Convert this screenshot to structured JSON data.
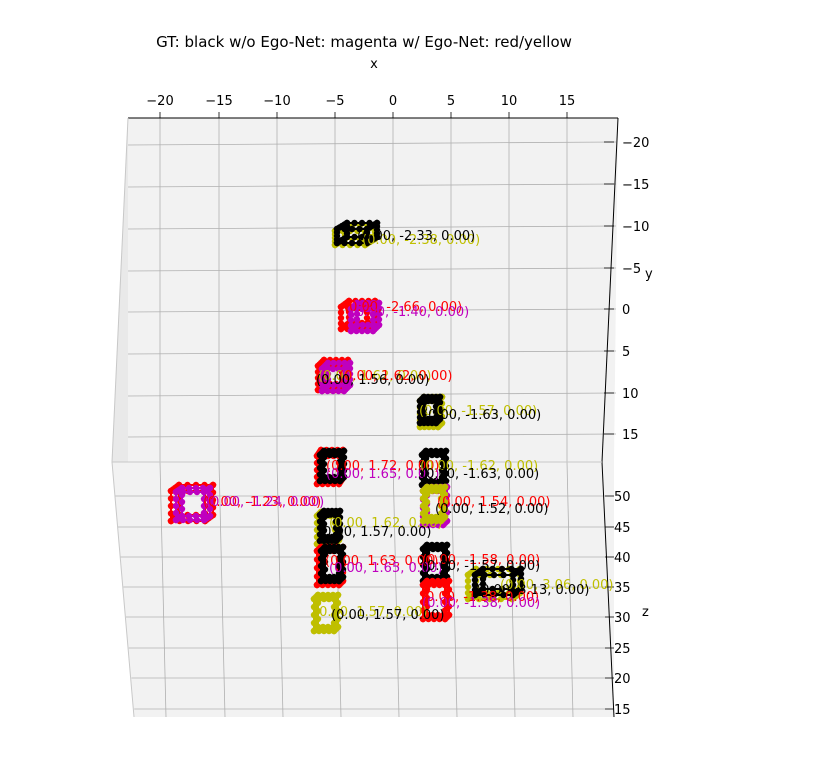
{
  "chart_data": {
    "type": "scatter",
    "title": "GT: black w/o Ego-Net: magenta w/ Ego-Net: red/yellow",
    "xlabel": "x",
    "ylabel": "y",
    "zlabel": "z",
    "x_ticks": [
      "−20",
      "−15",
      "−10",
      "−5",
      "0",
      "5",
      "10",
      "15"
    ],
    "y_ticks": [
      "−20",
      "−15",
      "−10",
      "−5",
      "0",
      "5",
      "10",
      "15"
    ],
    "z_ticks": [
      "50",
      "45",
      "40",
      "35",
      "30",
      "25",
      "20",
      "15"
    ],
    "colors": {
      "gt": "#000000",
      "wo_egonet": "#bf00bf",
      "w_egonet_red": "#ff0000",
      "w_egonet_yellow": "#bfbf00"
    },
    "annotations": [
      {
        "color": "yellow",
        "text": "(0.00, -2.38, 0.00)"
      },
      {
        "color": "black",
        "text": "(0.00, -2.33, 0.00)"
      },
      {
        "color": "red",
        "text": "(0.00, -2.66, 0.00)"
      },
      {
        "color": "magenta",
        "text": "(0.00, -1.40, 0.00)"
      },
      {
        "color": "yellow",
        "text": "(0.00, 1.62, 0.00)"
      },
      {
        "color": "red",
        "text": "(0.00, 1.62, 0.00)"
      },
      {
        "color": "black",
        "text": "(0.00, 1.56, 0.00)"
      },
      {
        "color": "yellow",
        "text": "(0.00, -1.57, 0.00)"
      },
      {
        "color": "black",
        "text": "(0.00, -1.63, 0.00)"
      },
      {
        "color": "red",
        "text": "(0.00, 1.72, 0.00)"
      },
      {
        "color": "magenta",
        "text": "(0.00, 1.65, 0.00)"
      },
      {
        "color": "yellow",
        "text": "(0.00, -1.62, 0.00)"
      },
      {
        "color": "black",
        "text": "(0.00, -1.63, 0.00)"
      },
      {
        "color": "red",
        "text": "(0.00, -1.23, 0.00)"
      },
      {
        "color": "magenta",
        "text": "(0.00, -1.24, 0.00)"
      },
      {
        "color": "red",
        "text": "(0.00, 1.54, 0.00)"
      },
      {
        "color": "black",
        "text": "(0.00, 1.52, 0.00)"
      },
      {
        "color": "yellow",
        "text": "(0.00, 1.62, 0.00)"
      },
      {
        "color": "black",
        "text": "(0.00, 1.57, 0.00)"
      },
      {
        "color": "red",
        "text": "(0.00, 1.63, 0.00)"
      },
      {
        "color": "magenta",
        "text": "(0.00, 1.65, 0.00)"
      },
      {
        "color": "red",
        "text": "(0.00, -1.58, 0.00)"
      },
      {
        "color": "black",
        "text": "(0.00, -1.57, 0.00)"
      },
      {
        "color": "yellow",
        "text": "(0.00, 3.06, 0.00)"
      },
      {
        "color": "black",
        "text": "(0.00, 3.13, 0.00)"
      },
      {
        "color": "red",
        "text": "(0.00, -1.38, 0.00)"
      },
      {
        "color": "magenta",
        "text": "(0.00, -1.38, 0.00)"
      },
      {
        "color": "yellow",
        "text": "(0.00, 1.57, 0.00)"
      },
      {
        "color": "black",
        "text": "(0.00, 1.57, 0.00)"
      }
    ]
  }
}
